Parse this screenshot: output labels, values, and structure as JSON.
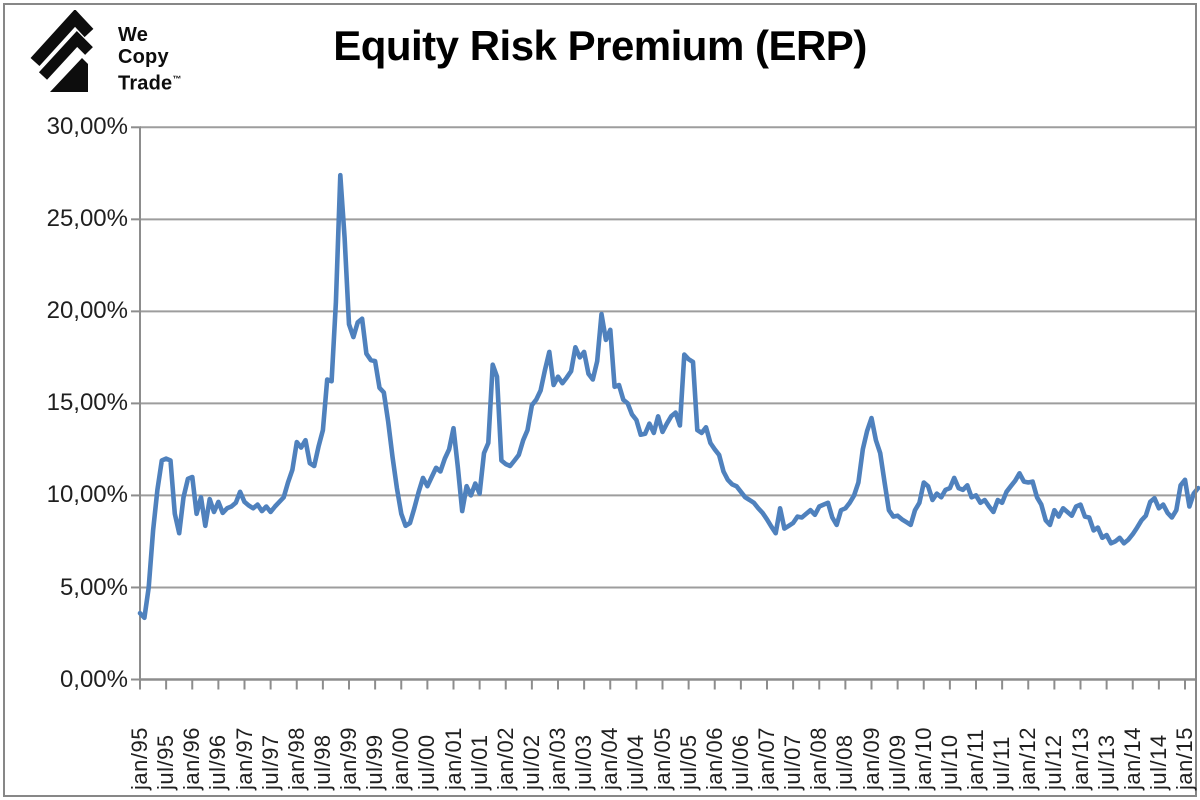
{
  "brand": {
    "line1": "We",
    "line2": "Copy",
    "line3": "Trade",
    "tm": "™",
    "icon": "triple-chevron-arrow-logo",
    "color": "#0d0d0d"
  },
  "title": "Equity Risk Premium (ERP)",
  "colors": {
    "line": "#4f81bd",
    "grid": "#9d9d9d",
    "axis": "#8d8d8d",
    "tick_label": "#1f1f1f",
    "title": "#000000",
    "frame": "#878787",
    "background": "#ffffff"
  },
  "chart_data": {
    "type": "line",
    "title": "Equity Risk Premium (ERP)",
    "series_name": "ERP",
    "legend": "none",
    "grid": "horizontal",
    "ylim": [
      0,
      30
    ],
    "y_step": 5,
    "y_tick_labels": [
      "30,00%",
      "25,00%",
      "20,00%",
      "15,00%",
      "10,00%",
      "5,00%",
      "0,00%"
    ],
    "x_start": "jan/95",
    "x_end_visible": "jan/15",
    "months_per_x_tick": 6,
    "x_tick_labels": [
      "jan/95",
      "jul/95",
      "jan/96",
      "jul/96",
      "jan/97",
      "jul/97",
      "jan/98",
      "jul/98",
      "jan/99",
      "jul/99",
      "jan/00",
      "jul/00",
      "jan/01",
      "jul/01",
      "jan/02",
      "jul/02",
      "jan/03",
      "jul/03",
      "jan/04",
      "jul/04",
      "jan/05",
      "jul/05",
      "jan/06",
      "jul/06",
      "jan/07",
      "jul/07",
      "jan/08",
      "jul/08",
      "jan/09",
      "jul/09",
      "jan/10",
      "jul/10",
      "jan/11",
      "jul/11",
      "jan/12",
      "jul/12",
      "jan/13",
      "jul/13",
      "jan/14",
      "jul/14",
      "jan/15"
    ],
    "values_pct_monthly": [
      3.6,
      3.35,
      5.0,
      8.1,
      10.3,
      11.9,
      12.0,
      11.9,
      9.0,
      7.95,
      9.9,
      10.9,
      11.0,
      9.0,
      9.9,
      8.35,
      9.8,
      9.1,
      9.65,
      9.05,
      9.3,
      9.4,
      9.6,
      10.2,
      9.65,
      9.45,
      9.3,
      9.5,
      9.15,
      9.4,
      9.1,
      9.4,
      9.65,
      9.9,
      10.7,
      11.4,
      12.9,
      12.6,
      13.0,
      11.75,
      11.6,
      12.65,
      13.55,
      16.3,
      16.2,
      20.5,
      27.4,
      24.0,
      19.3,
      18.6,
      19.4,
      19.6,
      17.7,
      17.35,
      17.3,
      15.85,
      15.6,
      14.0,
      12.1,
      10.4,
      9.0,
      8.35,
      8.5,
      9.3,
      10.2,
      10.95,
      10.5,
      11.0,
      11.5,
      11.3,
      12.0,
      12.5,
      13.65,
      11.5,
      9.15,
      10.5,
      10.0,
      10.65,
      10.1,
      12.3,
      12.85,
      17.1,
      16.45,
      11.9,
      11.7,
      11.6,
      11.9,
      12.2,
      13.0,
      13.55,
      14.9,
      15.2,
      15.7,
      16.8,
      17.8,
      16.0,
      16.45,
      16.1,
      16.4,
      16.75,
      18.05,
      17.5,
      17.8,
      16.6,
      16.3,
      17.3,
      19.85,
      18.45,
      19.0,
      15.9,
      16.0,
      15.2,
      15.0,
      14.4,
      14.1,
      13.3,
      13.35,
      13.9,
      13.4,
      14.3,
      13.45,
      13.9,
      14.3,
      14.5,
      13.8,
      17.65,
      17.4,
      17.25,
      13.55,
      13.4,
      13.7,
      12.85,
      12.5,
      12.2,
      11.3,
      10.85,
      10.6,
      10.5,
      10.2,
      9.9,
      9.75,
      9.6,
      9.3,
      9.05,
      8.7,
      8.3,
      7.95,
      9.3,
      8.2,
      8.35,
      8.5,
      8.85,
      8.8,
      9.0,
      9.2,
      8.95,
      9.4,
      9.5,
      9.6,
      8.8,
      8.4,
      9.2,
      9.3,
      9.6,
      10.0,
      10.7,
      12.5,
      13.5,
      14.2,
      13.0,
      12.3,
      10.7,
      9.2,
      8.85,
      8.9,
      8.7,
      8.55,
      8.4,
      9.2,
      9.6,
      10.7,
      10.5,
      9.75,
      10.1,
      9.9,
      10.3,
      10.4,
      10.95,
      10.4,
      10.3,
      10.55,
      9.9,
      10.0,
      9.6,
      9.75,
      9.4,
      9.1,
      9.75,
      9.6,
      10.2,
      10.5,
      10.8,
      11.2,
      10.75,
      10.7,
      10.75,
      9.9,
      9.5,
      8.65,
      8.4,
      9.2,
      8.85,
      9.3,
      9.1,
      8.9,
      9.4,
      9.5,
      8.85,
      8.8,
      8.1,
      8.25,
      7.7,
      7.85,
      7.4,
      7.5,
      7.7,
      7.4,
      7.6,
      7.9,
      8.25,
      8.65,
      8.9,
      9.65,
      9.85,
      9.3,
      9.5,
      9.05,
      8.8,
      9.2,
      10.55,
      10.85,
      9.4,
      10.1,
      10.4
    ]
  }
}
